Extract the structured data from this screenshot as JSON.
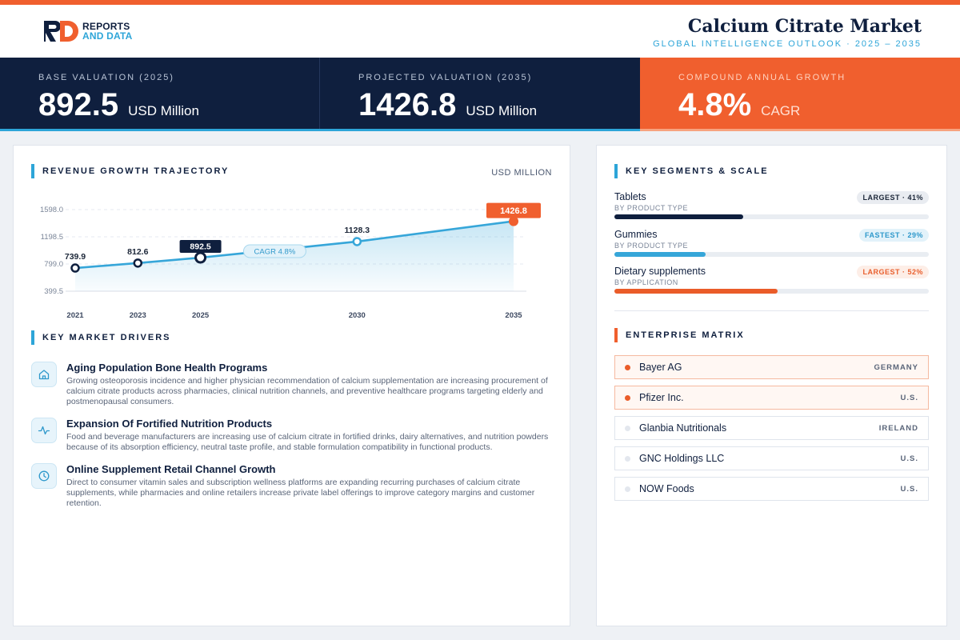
{
  "header": {
    "logo_line1": "REPORTS",
    "logo_line2": "AND DATA",
    "title": "Calcium Citrate Market",
    "subtitle": "GLOBAL INTELLIGENCE OUTLOOK  ·  2025 – 2035"
  },
  "kpis": [
    {
      "label": "BASE VALUATION (2025)",
      "value": "892.5",
      "unit": "USD Million"
    },
    {
      "label": "PROJECTED VALUATION (2035)",
      "value": "1426.8",
      "unit": "USD Million"
    },
    {
      "label": "COMPOUND ANNUAL GROWTH",
      "value": "4.8%",
      "unit": "CAGR"
    }
  ],
  "chart_section": {
    "title": "REVENUE GROWTH TRAJECTORY",
    "unit": "USD MILLION"
  },
  "chart_data": {
    "type": "line",
    "title": "REVENUE GROWTH TRAJECTORY",
    "ylabel": "USD MILLION",
    "x": [
      "2021",
      "2023",
      "2025",
      "2030",
      "2035"
    ],
    "values": [
      739.9,
      812.6,
      892.5,
      1128.3,
      1426.8
    ],
    "value_labels": [
      "739.9",
      "812.6",
      "892.5",
      "1128.3",
      "1426.8"
    ],
    "yticks": [
      "1598.0",
      "1198.5",
      "799.0",
      "399.5"
    ],
    "ytick_values": [
      1598.0,
      1198.5,
      799.0,
      399.5
    ],
    "ylim": [
      399.5,
      1598.0
    ],
    "annotation": "CAGR 4.8%",
    "grid": true,
    "colors": {
      "line": "#36a6d9",
      "highlight": "#0f1f3e",
      "end": "#f05f2e"
    }
  },
  "drivers_section": {
    "title": "KEY MARKET DRIVERS"
  },
  "drivers": [
    {
      "icon": "home-icon",
      "title": "Aging Population Bone Health Programs",
      "text": "Growing osteoporosis incidence and higher physician recommendation of calcium supplementation are increasing procurement of calcium citrate products across pharmacies, clinical nutrition channels, and preventive healthcare programs targeting elderly and postmenopausal consumers."
    },
    {
      "icon": "activity-icon",
      "title": "Expansion Of Fortified Nutrition Products",
      "text": "Food and beverage manufacturers are increasing use of calcium citrate in fortified drinks, dairy alternatives, and nutrition powders because of its absorption efficiency, neutral taste profile, and stable formulation compatibility in functional products."
    },
    {
      "icon": "clock-icon",
      "title": "Online Supplement Retail Channel Growth",
      "text": "Direct to consumer vitamin sales and subscription wellness platforms are expanding recurring purchases of calcium citrate supplements, while pharmacies and online retailers increase private label offerings to improve category margins and customer retention."
    }
  ],
  "segments_section": {
    "title": "KEY SEGMENTS & SCALE"
  },
  "segments": [
    {
      "name": "Tablets",
      "sub": "BY PRODUCT TYPE",
      "badge": "LARGEST · 41%",
      "fill": 0.41,
      "color": "#0f1f3e"
    },
    {
      "name": "Gummies",
      "sub": "BY PRODUCT TYPE",
      "badge": "FASTEST · 29%",
      "fill": 0.29,
      "color": "#36a6d9"
    },
    {
      "name": "Dietary supplements",
      "sub": "BY APPLICATION",
      "badge": "LARGEST · 52%",
      "fill": 0.52,
      "color": "#ea5c29"
    }
  ],
  "enterprise_section": {
    "title": "ENTERPRISE MATRIX"
  },
  "enterprises": [
    {
      "name": "Bayer AG",
      "country": "GERMANY",
      "highlight": true
    },
    {
      "name": "Pfizer Inc.",
      "country": "U.S.",
      "highlight": true
    },
    {
      "name": "Glanbia Nutritionals",
      "country": "IRELAND",
      "highlight": false
    },
    {
      "name": "GNC Holdings LLC",
      "country": "U.S.",
      "highlight": false
    },
    {
      "name": "NOW Foods",
      "country": "U.S.",
      "highlight": false
    }
  ]
}
